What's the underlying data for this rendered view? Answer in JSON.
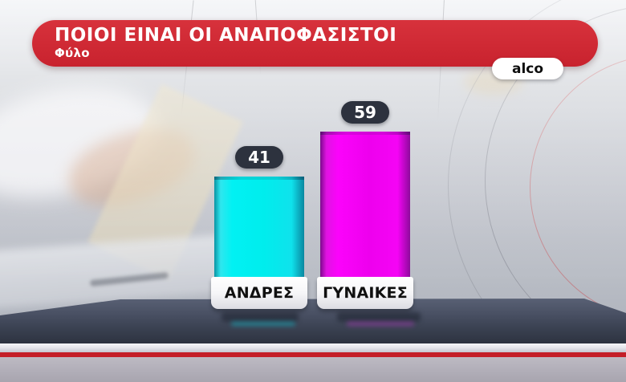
{
  "header": {
    "title": "ΠΟΙΟΙ ΕΙΝΑΙ ΟΙ ΑΝΑΠΟΦΑΣΙΣΤΟΙ",
    "subtitle": "Φύλο"
  },
  "branding": {
    "logo": "alco"
  },
  "chart_data": {
    "type": "bar",
    "title": "ΠΟΙΟΙ ΕΙΝΑΙ ΟΙ ΑΝΑΠΟΦΑΣΙΣΤΟΙ",
    "subtitle": "Φύλο",
    "categories": [
      "ΑΝΔΡΕΣ",
      "ΓΥΝΑΙΚΕΣ"
    ],
    "values": [
      41,
      59
    ],
    "unit": "percent",
    "ylim": [
      0,
      100
    ],
    "grid": false,
    "legend": "none",
    "bar_colors": [
      "#00efef",
      "#ee00ee"
    ],
    "value_badge_color": "#2d323e",
    "category_box_color": "#ffffff"
  },
  "colors": {
    "banner_red": "#cf2934",
    "bottom_stripe_red": "#c41e28",
    "desk_slate": "#3a4151"
  }
}
